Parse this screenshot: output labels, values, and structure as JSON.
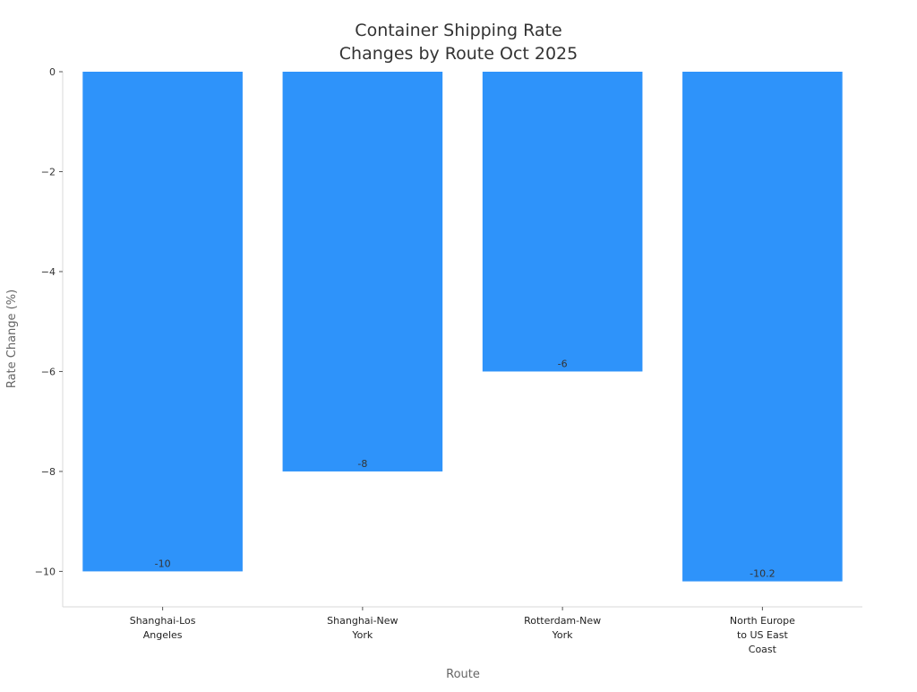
{
  "chart_data": {
    "type": "bar",
    "title": [
      "Container Shipping Rate",
      "Changes by Route Oct 2025"
    ],
    "xlabel": "Route",
    "ylabel": "Rate Change (%)",
    "categories": [
      [
        "Shanghai-Los",
        "Angeles"
      ],
      [
        "Shanghai-New",
        "York"
      ],
      [
        "Rotterdam-New",
        "York"
      ],
      [
        "North Europe",
        "to US East",
        "Coast"
      ]
    ],
    "values": [
      -10,
      -8,
      -6,
      -10.2
    ],
    "data_labels": [
      "-10",
      "-8",
      "-6",
      "-10.2"
    ],
    "yticks": [
      0,
      -2,
      -4,
      -6,
      -8,
      -10
    ],
    "ytick_labels": [
      "0",
      "−2",
      "−4",
      "−6",
      "−8",
      "−10"
    ],
    "ylim": [
      -10.71,
      0
    ],
    "grid": false,
    "colors": {
      "bar": "#2e93fa",
      "axis": "#d9d9d9",
      "text": "#333333",
      "label": "#666666"
    }
  }
}
